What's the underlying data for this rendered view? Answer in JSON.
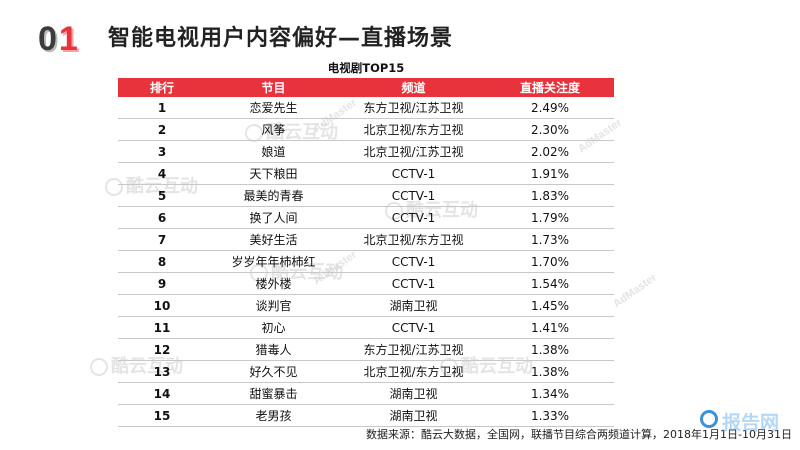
{
  "slide": {
    "number_first": "0",
    "number_second": "1",
    "title": "智能电视用户内容偏好—直播场景"
  },
  "table": {
    "caption": "电视剧TOP15",
    "headers": [
      "排行",
      "节目",
      "频道",
      "直播关注度"
    ],
    "rows": [
      {
        "rank": "1",
        "program": "恋爱先生",
        "channel": "东方卫视/江苏卫视",
        "attention": "2.49%"
      },
      {
        "rank": "2",
        "program": "风筝",
        "channel": "北京卫视/东方卫视",
        "attention": "2.30%"
      },
      {
        "rank": "3",
        "program": "娘道",
        "channel": "北京卫视/江苏卫视",
        "attention": "2.02%"
      },
      {
        "rank": "4",
        "program": "天下粮田",
        "channel": "CCTV-1",
        "attention": "1.91%"
      },
      {
        "rank": "5",
        "program": "最美的青春",
        "channel": "CCTV-1",
        "attention": "1.83%"
      },
      {
        "rank": "6",
        "program": "换了人间",
        "channel": "CCTV-1",
        "attention": "1.79%"
      },
      {
        "rank": "7",
        "program": "美好生活",
        "channel": "北京卫视/东方卫视",
        "attention": "1.73%"
      },
      {
        "rank": "8",
        "program": "岁岁年年柿柿红",
        "channel": "CCTV-1",
        "attention": "1.70%"
      },
      {
        "rank": "9",
        "program": "楼外楼",
        "channel": "CCTV-1",
        "attention": "1.54%"
      },
      {
        "rank": "10",
        "program": "谈判官",
        "channel": "湖南卫视",
        "attention": "1.45%"
      },
      {
        "rank": "11",
        "program": "初心",
        "channel": "CCTV-1",
        "attention": "1.41%"
      },
      {
        "rank": "12",
        "program": "猎毒人",
        "channel": "东方卫视/江苏卫视",
        "attention": "1.38%"
      },
      {
        "rank": "13",
        "program": "好久不见",
        "channel": "北京卫视/东方卫视",
        "attention": "1.38%"
      },
      {
        "rank": "14",
        "program": "甜蜜暴击",
        "channel": "湖南卫视",
        "attention": "1.34%"
      },
      {
        "rank": "15",
        "program": "老男孩",
        "channel": "湖南卫视",
        "attention": "1.33%"
      }
    ]
  },
  "watermarks": {
    "cn": "酷云互动",
    "en": "AdMaster"
  },
  "source_note": "数据来源：酷云大数据，全国网，联播节目综合两频道计算，2018年1月1日-10月31日",
  "corner_logo": {
    "text": "报告网",
    "icon": "ring-logo-icon"
  },
  "colors": {
    "accent": "#e8323c",
    "dark": "#3c3c3c"
  }
}
